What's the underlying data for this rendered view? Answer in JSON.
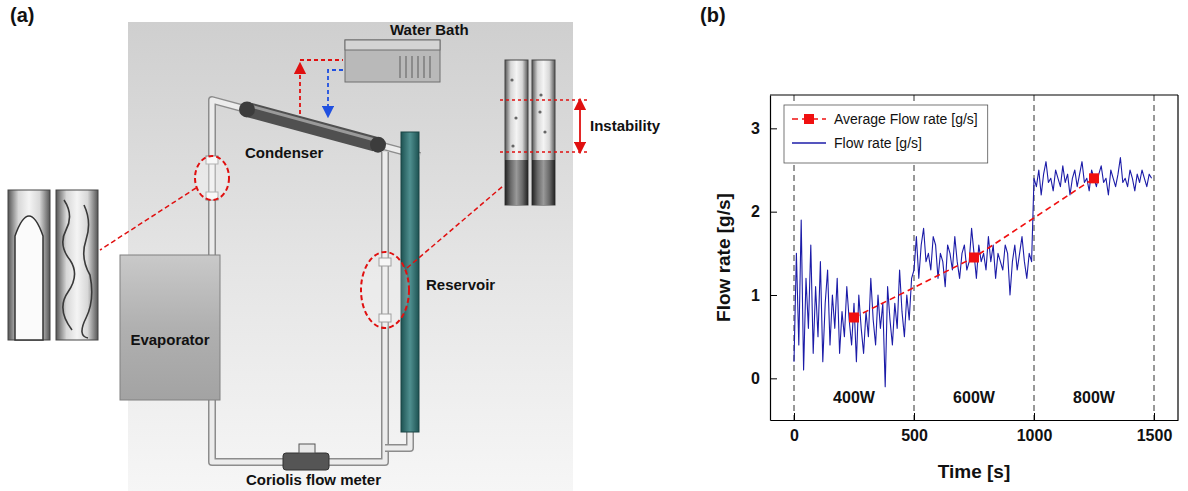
{
  "diagram": {
    "panel_label": "(a)",
    "components": {
      "water_bath": "Water Bath",
      "condenser": "Condenser",
      "reservoir": "Reservoir",
      "evaporator": "Evaporator",
      "flow_meter": "Coriolis flow meter"
    },
    "callout": "Instability"
  },
  "chart_data": {
    "type": "line",
    "panel_label": "(b)",
    "x_label": "Time [s]",
    "y_label": "Flow rate [g/s]",
    "xlim": [
      -100,
      1600
    ],
    "ylim": [
      -0.5,
      3.4
    ],
    "xticks": [
      0,
      500,
      1000,
      1500
    ],
    "yticks": [
      0,
      1,
      2,
      3
    ],
    "grid": "x",
    "legend": "upper left",
    "annotations": [
      {
        "text": "400W",
        "x": 250,
        "y": -0.3
      },
      {
        "text": "600W",
        "x": 750,
        "y": -0.3
      },
      {
        "text": "800W",
        "x": 1250,
        "y": -0.3
      }
    ],
    "series": [
      {
        "name": "Average Flow rate [g/s]",
        "color": "#f01010",
        "line_style": "dashed",
        "marker": "square",
        "x": [
          250,
          750,
          1250
        ],
        "values": [
          0.73,
          1.45,
          2.4
        ]
      },
      {
        "name": "Flow rate [g/s]",
        "color": "#1c1ca8",
        "line_style": "solid",
        "x": [
          0,
          10,
          20,
          30,
          40,
          50,
          60,
          70,
          80,
          90,
          100,
          110,
          120,
          130,
          140,
          150,
          160,
          170,
          180,
          190,
          200,
          210,
          220,
          230,
          240,
          250,
          260,
          270,
          280,
          290,
          300,
          310,
          320,
          330,
          340,
          350,
          360,
          370,
          380,
          390,
          400,
          410,
          420,
          430,
          440,
          450,
          460,
          470,
          480,
          490,
          500,
          510,
          520,
          530,
          540,
          550,
          560,
          570,
          580,
          590,
          600,
          610,
          620,
          630,
          640,
          650,
          660,
          670,
          680,
          690,
          700,
          710,
          720,
          730,
          740,
          750,
          760,
          770,
          780,
          790,
          800,
          810,
          820,
          830,
          840,
          850,
          860,
          870,
          880,
          890,
          900,
          910,
          920,
          930,
          940,
          950,
          960,
          970,
          980,
          990,
          1000,
          1010,
          1020,
          1030,
          1040,
          1050,
          1060,
          1070,
          1080,
          1090,
          1100,
          1110,
          1120,
          1130,
          1140,
          1150,
          1160,
          1170,
          1180,
          1190,
          1200,
          1210,
          1220,
          1230,
          1240,
          1250,
          1260,
          1270,
          1280,
          1290,
          1300,
          1310,
          1320,
          1330,
          1340,
          1350,
          1360,
          1370,
          1380,
          1390,
          1400,
          1410,
          1420,
          1430,
          1440,
          1450,
          1460,
          1470,
          1480,
          1490
        ],
        "values": [
          0.2,
          1.5,
          0.4,
          1.9,
          0.1,
          1.2,
          0.6,
          1.6,
          0.3,
          1.1,
          0.5,
          1.4,
          0.2,
          0.9,
          1.3,
          0.4,
          1.0,
          0.6,
          1.2,
          0.3,
          0.8,
          0.5,
          1.1,
          0.7,
          0.4,
          0.9,
          0.2,
          1.0,
          0.6,
          0.3,
          0.8,
          0.5,
          1.2,
          0.7,
          0.4,
          1.0,
          0.6,
          0.9,
          -0.1,
          1.1,
          0.7,
          0.4,
          0.9,
          0.6,
          1.3,
          0.8,
          0.5,
          1.0,
          0.7,
          1.2,
          1.3,
          1.7,
          1.2,
          1.6,
          1.8,
          1.4,
          1.5,
          1.3,
          1.7,
          1.6,
          1.2,
          1.5,
          1.4,
          1.1,
          1.6,
          1.5,
          1.3,
          1.7,
          1.4,
          1.2,
          1.5,
          1.6,
          1.3,
          1.4,
          1.8,
          1.5,
          1.2,
          1.6,
          1.4,
          1.5,
          1.3,
          1.7,
          1.4,
          1.6,
          1.2,
          1.5,
          1.4,
          1.3,
          1.6,
          1.5,
          1.0,
          1.4,
          1.6,
          1.3,
          1.5,
          1.7,
          1.4,
          1.2,
          1.5,
          1.4,
          2.4,
          2.3,
          2.5,
          2.2,
          2.45,
          2.6,
          2.35,
          2.4,
          2.25,
          2.5,
          2.4,
          2.3,
          2.55,
          2.35,
          2.45,
          2.2,
          2.4,
          2.5,
          2.3,
          2.45,
          2.6,
          2.35,
          2.4,
          2.25,
          2.5,
          2.4,
          2.3,
          2.45,
          2.55,
          2.35,
          2.4,
          2.2,
          2.5,
          2.4,
          2.3,
          2.45,
          2.65,
          2.35,
          2.4,
          2.3,
          2.5,
          2.4,
          2.25,
          2.45,
          2.35,
          2.5,
          2.4,
          2.3,
          2.45,
          2.4
        ]
      }
    ]
  }
}
